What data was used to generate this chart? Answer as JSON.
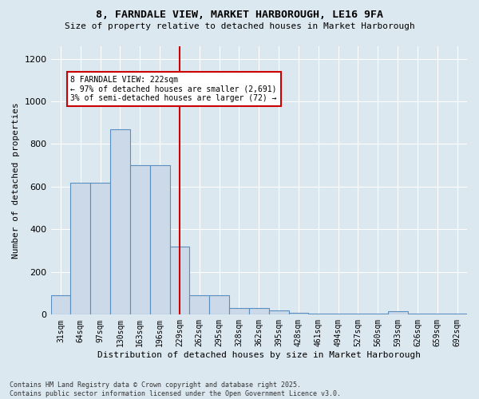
{
  "title_line1": "8, FARNDALE VIEW, MARKET HARBOROUGH, LE16 9FA",
  "title_line2": "Size of property relative to detached houses in Market Harborough",
  "xlabel": "Distribution of detached houses by size in Market Harborough",
  "ylabel": "Number of detached properties",
  "categories": [
    "31sqm",
    "64sqm",
    "97sqm",
    "130sqm",
    "163sqm",
    "196sqm",
    "229sqm",
    "262sqm",
    "295sqm",
    "328sqm",
    "362sqm",
    "395sqm",
    "428sqm",
    "461sqm",
    "494sqm",
    "527sqm",
    "560sqm",
    "593sqm",
    "626sqm",
    "659sqm",
    "692sqm"
  ],
  "values": [
    90,
    620,
    620,
    870,
    700,
    700,
    320,
    90,
    90,
    30,
    30,
    20,
    10,
    5,
    5,
    5,
    5,
    15,
    5,
    5,
    5
  ],
  "bar_color": "#ccd9e8",
  "bar_edge_color": "#5a8fc0",
  "vline_x": 6,
  "vline_color": "#cc0000",
  "annotation_text": "8 FARNDALE VIEW: 222sqm\n← 97% of detached houses are smaller (2,691)\n3% of semi-detached houses are larger (72) →",
  "annotation_box_color": "#ffffff",
  "annotation_box_edge_color": "#cc0000",
  "ylim": [
    0,
    1260
  ],
  "yticks": [
    0,
    200,
    400,
    600,
    800,
    1000,
    1200
  ],
  "footer_text": "Contains HM Land Registry data © Crown copyright and database right 2025.\nContains public sector information licensed under the Open Government Licence v3.0.",
  "bg_color": "#dce8f0",
  "plot_bg_color": "#dce8f0",
  "grid_color": "#ffffff"
}
